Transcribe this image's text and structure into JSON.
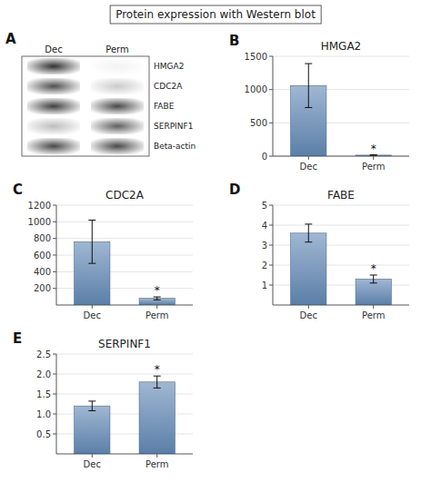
{
  "title": "Protein expression with Western blot",
  "chart_data": [
    {
      "type": "heatmap",
      "x": [
        "Dec",
        "Perm"
      ],
      "y": [
        "HMGA2",
        "CDC2A",
        "FABE",
        "SERPINF1",
        "Beta-actin"
      ],
      "cells": [
        [
          0.88,
          0.05
        ],
        [
          0.75,
          0.22
        ],
        [
          0.82,
          0.78
        ],
        [
          0.28,
          0.68
        ],
        [
          0.78,
          0.78
        ]
      ],
      "annotations": [
        {
          "text": "A"
        }
      ]
    },
    {
      "type": "bar",
      "title": "HMGA2",
      "categories": [
        "Dec",
        "Perm"
      ],
      "values": [
        1060,
        15
      ],
      "errors": [
        330,
        5
      ],
      "ylim": [
        0,
        1500
      ],
      "yticks": [
        0,
        500,
        1000,
        1500
      ],
      "annotations": [
        {
          "text": "B"
        },
        {
          "text": "*",
          "x": "Perm"
        }
      ]
    },
    {
      "type": "bar",
      "title": "CDC2A",
      "categories": [
        "Dec",
        "Perm"
      ],
      "values": [
        760,
        80
      ],
      "errors": [
        260,
        18
      ],
      "ylim": [
        0,
        1200
      ],
      "yticks": [
        200,
        400,
        600,
        800,
        1000,
        1200
      ],
      "annotations": [
        {
          "text": "C"
        },
        {
          "text": "*",
          "x": "Perm"
        }
      ]
    },
    {
      "type": "bar",
      "title": "FABE",
      "categories": [
        "Dec",
        "Perm"
      ],
      "values": [
        3.6,
        1.3
      ],
      "errors": [
        0.45,
        0.2
      ],
      "ylim": [
        0,
        5
      ],
      "yticks": [
        1,
        2,
        3,
        4,
        5
      ],
      "annotations": [
        {
          "text": "D"
        },
        {
          "text": "*",
          "x": "Perm"
        }
      ]
    },
    {
      "type": "bar",
      "title": "SERPINF1",
      "categories": [
        "Dec",
        "Perm"
      ],
      "values": [
        1.2,
        1.8
      ],
      "errors": [
        0.12,
        0.15
      ],
      "ylim": [
        0,
        2.5
      ],
      "yticks": [
        0.5,
        {
          "value": 1.0,
          "label": "1.0"
        },
        1.5,
        {
          "value": 2.0,
          "label": "2.0"
        },
        2.5
      ],
      "annotations": [
        {
          "text": "E"
        },
        {
          "text": "*",
          "x": "Perm"
        }
      ]
    }
  ]
}
